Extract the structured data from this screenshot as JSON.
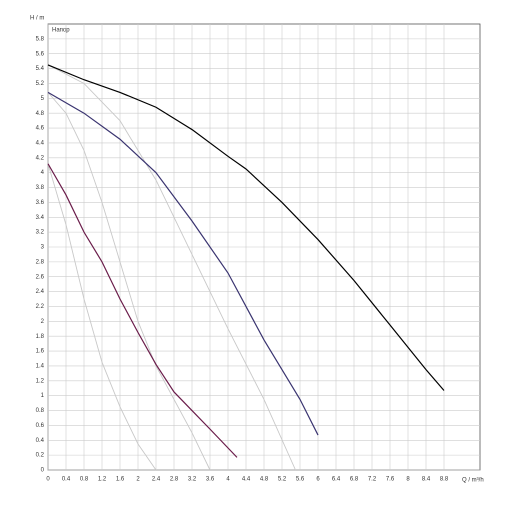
{
  "chart_data": {
    "type": "line",
    "y_label": "H / m",
    "legend_title": "Напор",
    "x_label": "Q / m³/h",
    "xlim": [
      0,
      9.6
    ],
    "ylim": [
      0,
      6
    ],
    "xticks": [
      0,
      0.4,
      0.8,
      1.2,
      1.6,
      2,
      2.4,
      2.8,
      3.2,
      3.6,
      4,
      4.4,
      4.8,
      5.2,
      5.6,
      6,
      6.4,
      6.8,
      7.2,
      7.6,
      8,
      8.4,
      8.8
    ],
    "yticks": [
      0,
      0.2,
      0.4,
      0.6,
      0.8,
      1,
      1.2,
      1.4,
      1.6,
      1.8,
      2,
      2.2,
      2.4,
      2.6,
      2.8,
      3,
      3.2,
      3.4,
      3.6,
      3.8,
      4,
      4.2,
      4.4,
      4.6,
      4.8,
      5,
      5.2,
      5.4,
      5.6,
      5.8
    ],
    "grid": true,
    "series": [
      {
        "color": "#c8c8c8",
        "x": [
          0,
          0.8,
          1.6,
          2.4,
          3.2,
          4,
          4.8,
          5.5
        ],
        "values": [
          5.45,
          5.2,
          4.7,
          3.9,
          2.9,
          1.9,
          0.95,
          0
        ]
      },
      {
        "color": "#c8c8c8",
        "x": [
          0,
          0.4,
          0.8,
          1.2,
          1.6,
          2,
          2.4,
          2.8,
          3.2,
          3.6
        ],
        "values": [
          5.08,
          4.8,
          4.3,
          3.6,
          2.8,
          2.0,
          1.4,
          0.95,
          0.5,
          0
        ]
      },
      {
        "color": "#c8c8c8",
        "x": [
          0,
          0.4,
          0.8,
          1.2,
          1.6,
          2,
          2.4
        ],
        "values": [
          4.12,
          3.3,
          2.3,
          1.45,
          0.85,
          0.35,
          0
        ]
      },
      {
        "color": "#000000",
        "x": [
          0,
          0.8,
          1.6,
          2.4,
          3.2,
          4,
          4.4,
          5.2,
          6,
          6.8,
          7.6,
          8.4,
          8.8
        ],
        "values": [
          5.45,
          5.25,
          5.08,
          4.88,
          4.58,
          4.22,
          4.05,
          3.6,
          3.1,
          2.55,
          1.95,
          1.35,
          1.07
        ]
      },
      {
        "color": "#3a3470",
        "x": [
          0,
          0.8,
          1.6,
          2.4,
          3.2,
          4,
          4.8,
          5.6,
          6
        ],
        "values": [
          5.08,
          4.8,
          4.45,
          4.0,
          3.35,
          2.65,
          1.75,
          0.95,
          0.47
        ]
      },
      {
        "color": "#6a1c4a",
        "x": [
          0,
          0.4,
          0.8,
          1.2,
          1.6,
          2,
          2.4,
          2.8,
          3.2,
          3.6,
          4.2
        ],
        "values": [
          4.12,
          3.7,
          3.2,
          2.8,
          2.3,
          1.85,
          1.42,
          1.05,
          0.8,
          0.55,
          0.17
        ]
      }
    ]
  }
}
